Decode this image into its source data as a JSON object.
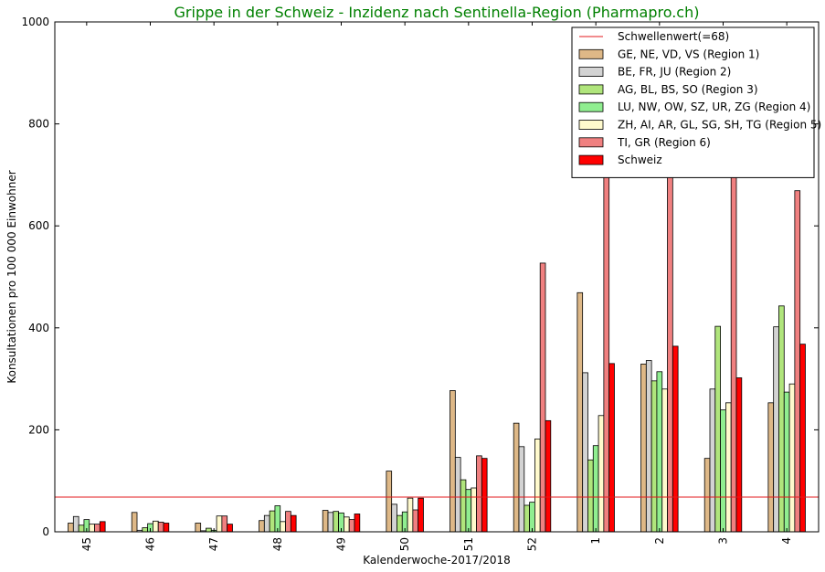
{
  "chart_data": {
    "type": "bar",
    "title": "Grippe in der Schweiz - Inzidenz nach Sentinella-Region (Pharmapro.ch)",
    "title_color": "#008000",
    "xlabel": "Kalenderwoche-2017/2018",
    "ylabel": "Konsultationen pro 100 000 Einwohner",
    "ylim": [
      0,
      1000
    ],
    "yticks": [
      0,
      200,
      400,
      600,
      800,
      1000
    ],
    "categories": [
      "45",
      "46",
      "47",
      "48",
      "49",
      "50",
      "51",
      "52",
      "1",
      "2",
      "3",
      "4"
    ],
    "grid": false,
    "legend_position": "top-right",
    "threshold": {
      "name": "Schwellenwert(=68)",
      "value": 68,
      "color": "#e31a1c"
    },
    "series": [
      {
        "name": "GE, NE, VD, VS (Region 1)",
        "color": "#deb887",
        "values": [
          17,
          38,
          17,
          22,
          42,
          119,
          277,
          213,
          469,
          329,
          144,
          253
        ]
      },
      {
        "name": "BE, FR, JU (Region 2)",
        "color": "#d3d3d3",
        "values": [
          30,
          3,
          2,
          32,
          38,
          54,
          146,
          167,
          312,
          336,
          280,
          402
        ]
      },
      {
        "name": "AG, BL, BS, SO (Region 3)",
        "color": "#b0e57c",
        "values": [
          13,
          8,
          7,
          41,
          40,
          32,
          102,
          52,
          141,
          296,
          403,
          443
        ]
      },
      {
        "name": "LU, NW, OW, SZ, UR, ZG (Region 4)",
        "color": "#90ee90",
        "values": [
          24,
          16,
          3,
          51,
          37,
          39,
          83,
          58,
          169,
          314,
          239,
          274
        ]
      },
      {
        "name": "ZH, AI, AR, GL, SG, SH, TG (Region 5)",
        "color": "#fffacd",
        "values": [
          15,
          21,
          31,
          20,
          29,
          66,
          86,
          182,
          228,
          280,
          253,
          290
        ]
      },
      {
        "name": "TI, GR (Region 6)",
        "color": "#f08080",
        "values": [
          15,
          19,
          31,
          40,
          24,
          43,
          149,
          527,
          775,
          770,
          775,
          669
        ]
      },
      {
        "name": "Schweiz",
        "color": "#ff0000",
        "values": [
          20,
          17,
          15,
          32,
          35,
          66,
          144,
          218,
          330,
          364,
          302,
          368
        ]
      }
    ]
  }
}
